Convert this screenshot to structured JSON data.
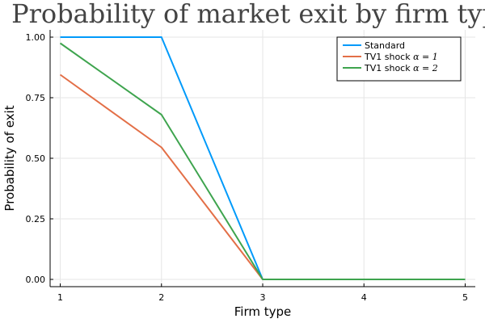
{
  "chart_data": {
    "type": "line",
    "title": "Probability of market exit by firm type",
    "xlabel": "Firm type",
    "ylabel": "Probability of exit",
    "x": [
      1,
      2,
      3,
      4,
      5
    ],
    "xlim": [
      0.9,
      5.1
    ],
    "ylim": [
      -0.03,
      1.03
    ],
    "xticks": [
      1,
      2,
      3,
      4,
      5
    ],
    "xtick_labels": [
      "1",
      "2",
      "3",
      "4",
      "5"
    ],
    "yticks": [
      0,
      0.25,
      0.5,
      0.75,
      1.0
    ],
    "ytick_labels": [
      "0.00",
      "0.25",
      "0.50",
      "0.75",
      "1.00"
    ],
    "grid": true,
    "legend_position": "top-right",
    "series": [
      {
        "name": "Standard",
        "name_math": "",
        "color": "#009AFA",
        "values": [
          1.0,
          1.0,
          0.0,
          0.0,
          0.0
        ]
      },
      {
        "name": "TV1 shock ",
        "name_math": "α = 1",
        "color": "#E36F47",
        "values": [
          0.845,
          0.545,
          0.0,
          0.0,
          0.0
        ]
      },
      {
        "name": "TV1 shock ",
        "name_math": "α = 2",
        "color": "#3EA44E",
        "values": [
          0.975,
          0.68,
          0.0,
          0.0,
          0.0
        ]
      }
    ]
  }
}
